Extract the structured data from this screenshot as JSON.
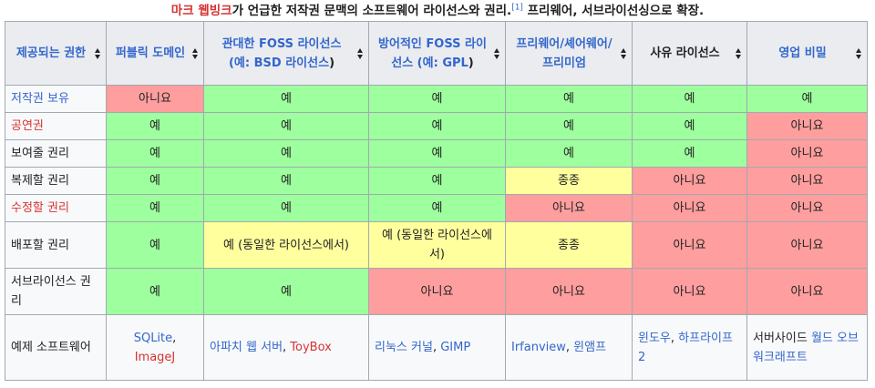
{
  "caption": {
    "link": "마크 웹빙크",
    "text": "가 언급한 저작권 문맥의 소프트웨어 라이선스와 권리.",
    "ref": "[1]",
    "suffix": " 프리웨어, 서브라이선싱으로 확장."
  },
  "headers": [
    {
      "label": "제공되는 권한",
      "color": "#3366cc"
    },
    {
      "label": "퍼블릭 도메인",
      "color": "#3366cc"
    },
    {
      "label_pre": "관대한 FOSS 라이선스 (예: ",
      "label_link": "BSD 라이선스",
      "label_post": ")",
      "color": "#3366cc"
    },
    {
      "label_pre": "방어적인 FOSS 라이선스 (예: ",
      "label_link": "GPL",
      "label_post": ")",
      "color": "#3366cc"
    },
    {
      "label": "프리웨어/셰어웨어/프리미엄",
      "color": "#3366cc"
    },
    {
      "label": "사유 라이선스",
      "color": "#202122"
    },
    {
      "label": "영업 비밀",
      "color": "#3366cc"
    }
  ],
  "rows": [
    {
      "right": "저작권 보유",
      "right_style": "link",
      "cells": [
        {
          "text": "아니요",
          "status": "no"
        },
        {
          "text": "예",
          "status": "yes"
        },
        {
          "text": "예",
          "status": "yes"
        },
        {
          "text": "예",
          "status": "yes"
        },
        {
          "text": "예",
          "status": "yes"
        },
        {
          "text": "예",
          "status": "yes"
        }
      ]
    },
    {
      "right": "공연권",
      "right_style": "redlink",
      "cells": [
        {
          "text": "예",
          "status": "yes"
        },
        {
          "text": "예",
          "status": "yes"
        },
        {
          "text": "예",
          "status": "yes"
        },
        {
          "text": "예",
          "status": "yes"
        },
        {
          "text": "예",
          "status": "yes"
        },
        {
          "text": "아니요",
          "status": "no"
        }
      ]
    },
    {
      "right": "보여줄 권리",
      "right_style": "plain",
      "cells": [
        {
          "text": "예",
          "status": "yes"
        },
        {
          "text": "예",
          "status": "yes"
        },
        {
          "text": "예",
          "status": "yes"
        },
        {
          "text": "예",
          "status": "yes"
        },
        {
          "text": "예",
          "status": "yes"
        },
        {
          "text": "아니요",
          "status": "no"
        }
      ]
    },
    {
      "right": "복제할 권리",
      "right_style": "plain",
      "cells": [
        {
          "text": "예",
          "status": "yes"
        },
        {
          "text": "예",
          "status": "yes"
        },
        {
          "text": "예",
          "status": "yes"
        },
        {
          "text": "종종",
          "status": "partial"
        },
        {
          "text": "아니요",
          "status": "no"
        },
        {
          "text": "아니요",
          "status": "no"
        }
      ]
    },
    {
      "right": "수정할 권리",
      "right_style": "redlink",
      "cells": [
        {
          "text": "예",
          "status": "yes"
        },
        {
          "text": "예",
          "status": "yes"
        },
        {
          "text": "예",
          "status": "yes"
        },
        {
          "text": "아니요",
          "status": "no"
        },
        {
          "text": "아니요",
          "status": "no"
        },
        {
          "text": "아니요",
          "status": "no"
        }
      ]
    },
    {
      "right": "배포할 권리",
      "right_style": "plain",
      "cells": [
        {
          "text": "예",
          "status": "yes"
        },
        {
          "text": "예 (동일한 라이선스에서)",
          "status": "partial"
        },
        {
          "text": "예 (동일한 라이선스에서)",
          "status": "partial"
        },
        {
          "text": "종종",
          "status": "partial"
        },
        {
          "text": "아니요",
          "status": "no"
        },
        {
          "text": "아니요",
          "status": "no"
        }
      ]
    },
    {
      "right": "서브라이선스 권리",
      "right_style": "plain",
      "cells": [
        {
          "text": "예",
          "status": "yes"
        },
        {
          "text": "예",
          "status": "yes"
        },
        {
          "text": "아니요",
          "status": "no"
        },
        {
          "text": "아니요",
          "status": "no"
        },
        {
          "text": "아니요",
          "status": "no"
        },
        {
          "text": "아니요",
          "status": "no"
        }
      ]
    }
  ],
  "example_row": {
    "label": "예제 소프트웨어",
    "cells": [
      {
        "parts": [
          {
            "t": "SQLite",
            "s": "link"
          },
          {
            "t": ", ",
            "s": "dark"
          },
          {
            "t": "ImageJ",
            "s": "redlink"
          }
        ],
        "align": "center"
      },
      {
        "parts": [
          {
            "t": "아파치 웹 서버",
            "s": "link"
          },
          {
            "t": ", ",
            "s": "dark"
          },
          {
            "t": "ToyBox",
            "s": "redlink"
          }
        ],
        "align": "left"
      },
      {
        "parts": [
          {
            "t": "리눅스 커널",
            "s": "link"
          },
          {
            "t": ", ",
            "s": "dark"
          },
          {
            "t": "GIMP",
            "s": "link"
          }
        ],
        "align": "left"
      },
      {
        "parts": [
          {
            "t": "Irfanview",
            "s": "link"
          },
          {
            "t": ", ",
            "s": "dark"
          },
          {
            "t": "윈앰프",
            "s": "link"
          }
        ],
        "align": "left"
      },
      {
        "parts": [
          {
            "t": "윈도우",
            "s": "link"
          },
          {
            "t": ", ",
            "s": "dark"
          },
          {
            "t": "하프라이프 2",
            "s": "link"
          }
        ],
        "align": "left"
      },
      {
        "parts": [
          {
            "t": "서버사이드 ",
            "s": "dark"
          },
          {
            "t": "월드 오브 워크래프트",
            "s": "link"
          }
        ],
        "align": "left"
      }
    ]
  },
  "colors": {
    "yes": "#9eff9e",
    "no": "#ff9e9e",
    "partial": "#ffff9e",
    "header_bg": "#eaecf0",
    "link": "#3366cc",
    "redlink": "#d73333"
  }
}
